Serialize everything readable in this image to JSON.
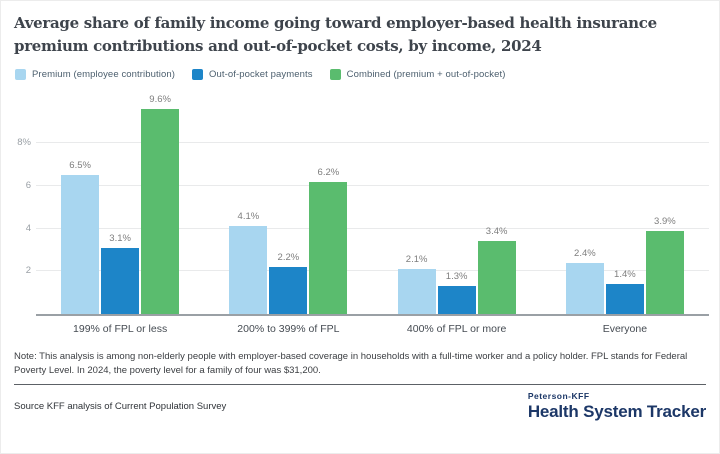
{
  "header": {
    "title": "Average share of family income going toward employer-based health insurance premium contributions and out-of-pocket costs, by income, 2024"
  },
  "legend": {
    "items": [
      {
        "label": "Premium (employee contribution)",
        "color": "#a8d6f0"
      },
      {
        "label": "Out-of-pocket payments",
        "color": "#1d85c8"
      },
      {
        "label": "Combined (premium + out-of-pocket)",
        "color": "#5abc6e"
      }
    ]
  },
  "chart_data": {
    "type": "bar",
    "title": "Average share of family income going toward employer-based health insurance premium contributions and out-of-pocket costs, by income, 2024",
    "categories": [
      "199% of FPL or less",
      "200% to 399% of FPL",
      "400% of FPL or more",
      "Everyone"
    ],
    "series": [
      {
        "name": "Premium (employee contribution)",
        "color": "#a8d6f0",
        "values": [
          6.5,
          4.1,
          2.1,
          2.4
        ]
      },
      {
        "name": "Out-of-pocket payments",
        "color": "#1d85c8",
        "values": [
          3.1,
          2.2,
          1.3,
          1.4
        ]
      },
      {
        "name": "Combined (premium + out-of-pocket)",
        "color": "#5abc6e",
        "values": [
          9.6,
          6.2,
          3.4,
          3.9
        ]
      }
    ],
    "value_label_format": "percent-one-decimal",
    "xlabel": "",
    "ylabel": "",
    "ylim": [
      0,
      10.4
    ],
    "yticks": [
      {
        "value": 2,
        "label": "2"
      },
      {
        "value": 4,
        "label": "4"
      },
      {
        "value": 6,
        "label": "6"
      },
      {
        "value": 8,
        "label": "8%"
      }
    ],
    "grid": true,
    "legend_position": "top"
  },
  "footer": {
    "note": "Note: This analysis is among non-elderly people with employer-based coverage in households with a full-time worker and a policy holder. FPL stands for Federal Poverty Level. In 2024, the poverty level for a family of four was $31,200.",
    "source": "Source KFF analysis of Current Population Survey",
    "brand": {
      "top": "Peterson-KFF",
      "bottom": "Health System Tracker",
      "color": "#1c3767"
    }
  }
}
